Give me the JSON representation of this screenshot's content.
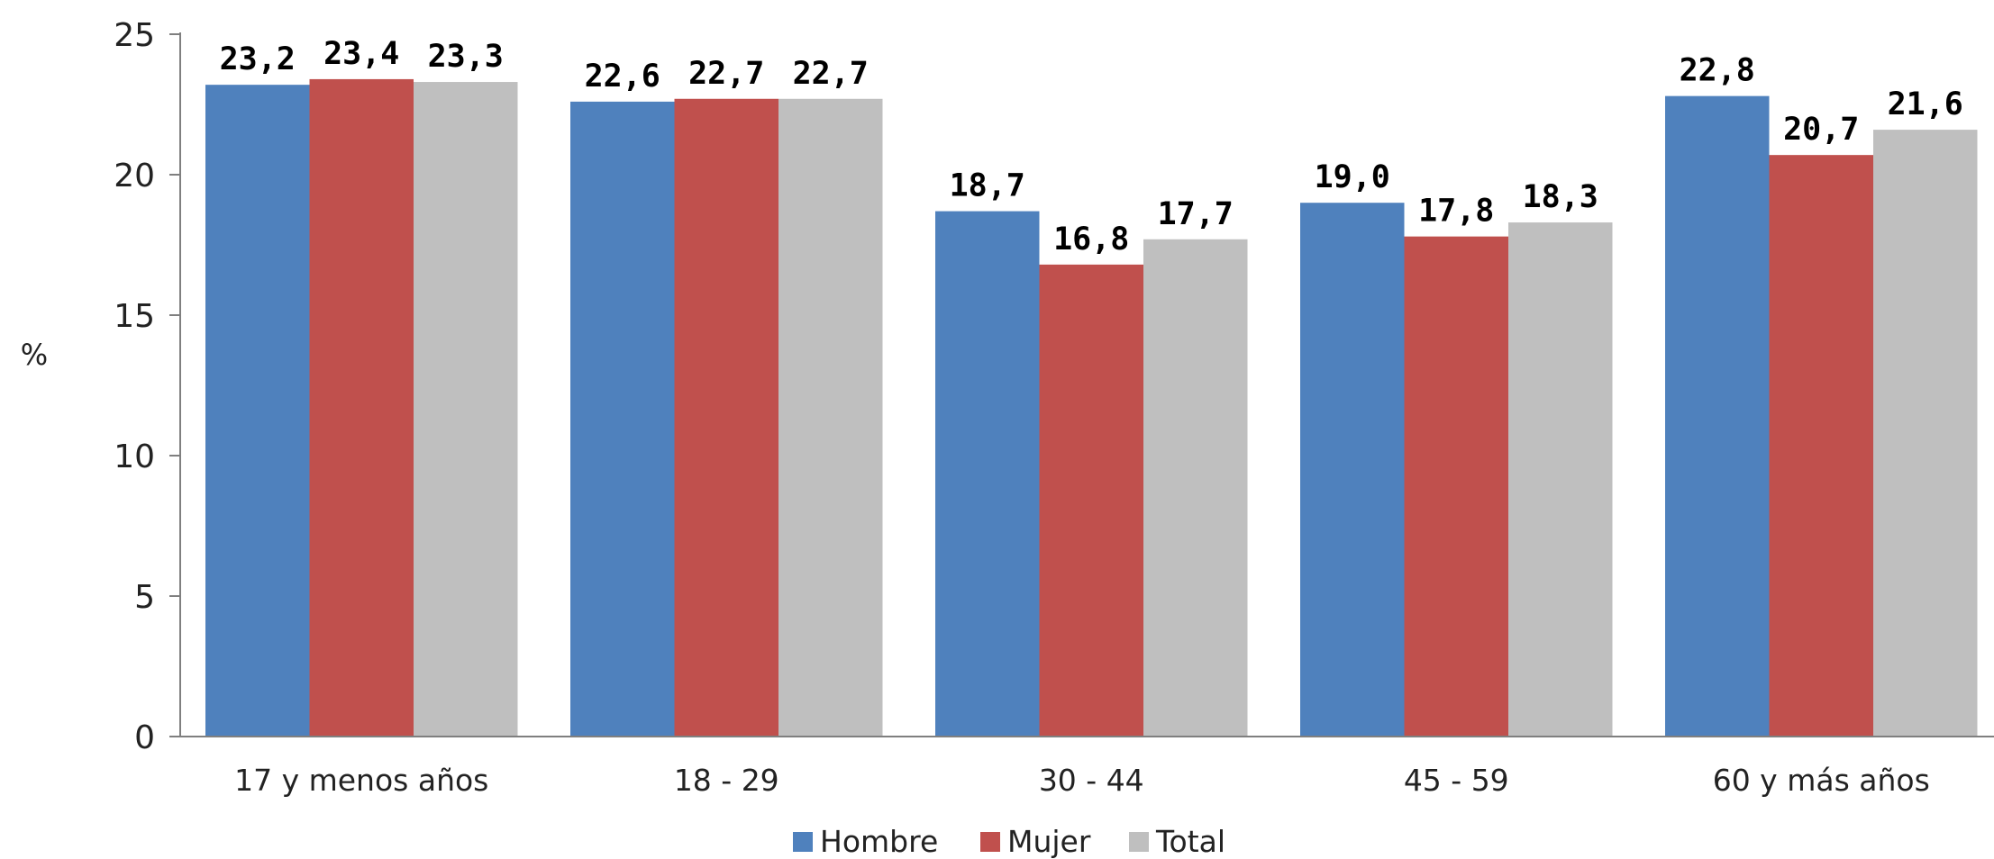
{
  "chart_data": {
    "type": "bar",
    "ylabel": "%",
    "ylim": [
      0,
      25
    ],
    "yticks": [
      0,
      5,
      10,
      15,
      20,
      25
    ],
    "categories": [
      "17 y menos años",
      "18 - 29",
      "30 - 44",
      "45 - 59",
      "60 y más años"
    ],
    "series": [
      {
        "name": "Hombre",
        "color": "#4F81BD",
        "values": [
          23.2,
          22.6,
          18.7,
          19.0,
          22.8
        ],
        "labels": [
          "23,2",
          "22,6",
          "18,7",
          "19,0",
          "22,8"
        ]
      },
      {
        "name": "Mujer",
        "color": "#C0504D",
        "values": [
          23.4,
          22.7,
          16.8,
          17.8,
          20.7
        ],
        "labels": [
          "23,4",
          "22,7",
          "16,8",
          "17,8",
          "20,7"
        ]
      },
      {
        "name": "Total",
        "color": "#BFBFBF",
        "values": [
          23.3,
          22.7,
          17.7,
          18.3,
          21.6
        ],
        "labels": [
          "23,3",
          "22,7",
          "17,7",
          "18,3",
          "21,6"
        ]
      }
    ],
    "grid": false,
    "legend_position": "bottom"
  }
}
